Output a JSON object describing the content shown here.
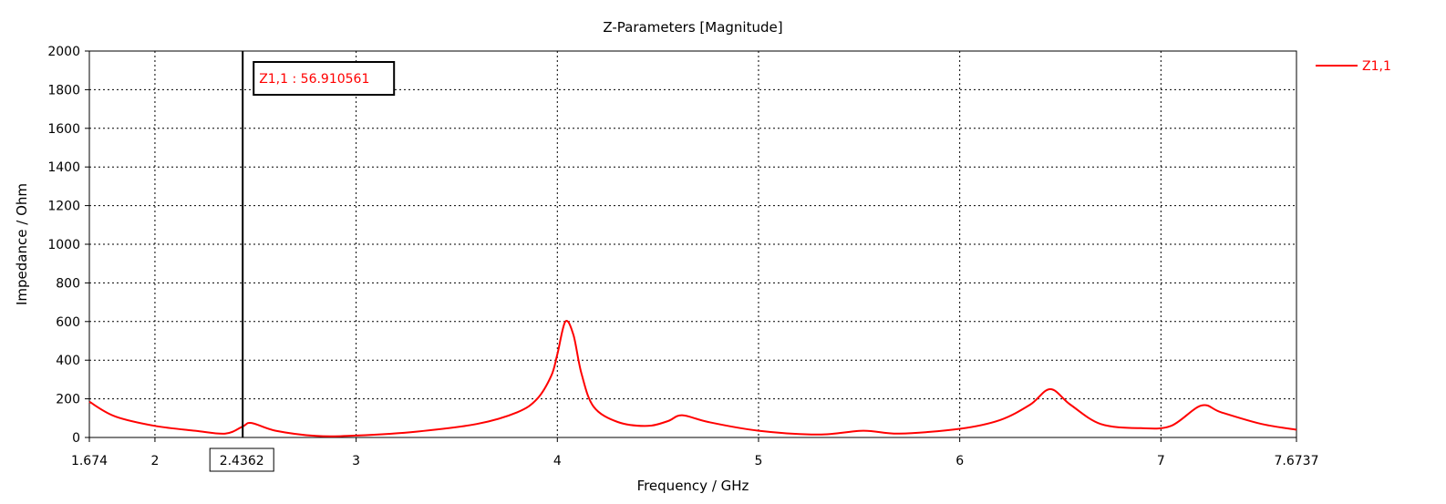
{
  "chart_data": {
    "type": "line",
    "title": "Z-Parameters [Magnitude]",
    "xlabel": "Frequency / GHz",
    "ylabel": "Impedance / Ohm",
    "xlim": [
      1.674,
      7.6737
    ],
    "ylim": [
      0,
      2000
    ],
    "xticks": [
      1.674,
      2,
      3,
      4,
      5,
      6,
      7,
      7.6737
    ],
    "xtick_labels": [
      "1.674",
      "2",
      "3",
      "4",
      "5",
      "6",
      "7",
      "7.6737"
    ],
    "yticks": [
      0,
      200,
      400,
      600,
      800,
      1000,
      1200,
      1400,
      1600,
      1800,
      2000
    ],
    "ytick_labels": [
      "0",
      "200",
      "400",
      "600",
      "800",
      "1000",
      "1200",
      "1400",
      "1600",
      "1800",
      "2000"
    ],
    "grid": true,
    "legend_position": "top-right",
    "colors": {
      "series": "#ff0000",
      "marker": "#000000",
      "grid": "#000000"
    },
    "series": [
      {
        "name": "Z1,1",
        "x": [
          1.674,
          1.8,
          2.0,
          2.2,
          2.35,
          2.4362,
          2.48,
          2.6,
          2.8,
          3.0,
          3.3,
          3.6,
          3.8,
          3.9,
          3.97,
          4.0,
          4.04,
          4.08,
          4.12,
          4.18,
          4.3,
          4.45,
          4.55,
          4.62,
          4.75,
          5.0,
          5.3,
          5.52,
          5.7,
          6.0,
          6.2,
          6.35,
          6.45,
          6.55,
          6.7,
          6.9,
          7.05,
          7.2,
          7.3,
          7.5,
          7.6737
        ],
        "y": [
          185,
          110,
          60,
          35,
          20,
          56.91,
          75,
          35,
          8,
          10,
          30,
          70,
          130,
          200,
          320,
          430,
          600,
          530,
          330,
          160,
          80,
          60,
          85,
          115,
          80,
          35,
          15,
          35,
          20,
          45,
          90,
          170,
          250,
          170,
          70,
          48,
          60,
          165,
          130,
          70,
          40
        ]
      }
    ],
    "marker": {
      "x_label": "2.4362",
      "readout": "Z1,1 : 56.910561"
    }
  }
}
